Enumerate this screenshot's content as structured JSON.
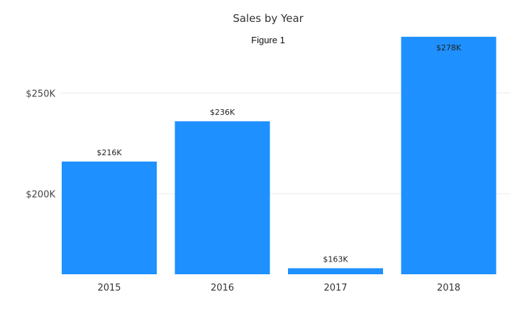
{
  "chart_data": {
    "type": "bar",
    "title": "Sales by Year",
    "subtitle": "Figure 1",
    "categories": [
      "2015",
      "2016",
      "2017",
      "2018"
    ],
    "values": [
      216,
      236,
      163,
      278
    ],
    "data_labels": [
      "$216K",
      "$236K",
      "$163K",
      "$278K"
    ],
    "y_ticks": [
      200,
      250
    ],
    "y_tick_labels": [
      "$200K",
      "$250K"
    ],
    "ylim": [
      160,
      287
    ],
    "xlabel": "",
    "ylabel": "",
    "grid": true,
    "bar_color": "#1e90ff"
  }
}
